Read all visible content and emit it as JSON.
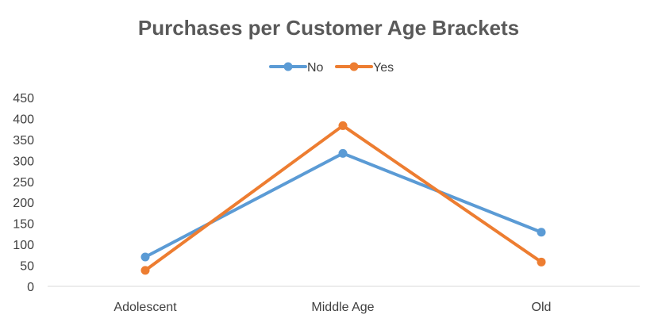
{
  "chart_data": {
    "type": "line",
    "title": "Purchases per Customer Age Brackets",
    "xlabel": "",
    "ylabel": "",
    "categories": [
      "Adolescent",
      "Middle Age",
      "Old"
    ],
    "series": [
      {
        "name": "No",
        "values": [
          70,
          317,
          129
        ],
        "color": "#5B9BD5"
      },
      {
        "name": "Yes",
        "values": [
          38,
          383,
          58
        ],
        "color": "#ED7D31"
      }
    ],
    "ylim": [
      0,
      450
    ],
    "yticks": [
      0,
      50,
      100,
      150,
      200,
      250,
      300,
      350,
      400,
      450
    ],
    "grid": false,
    "legend_position": "top",
    "axis_color": "#D9D9D9"
  }
}
